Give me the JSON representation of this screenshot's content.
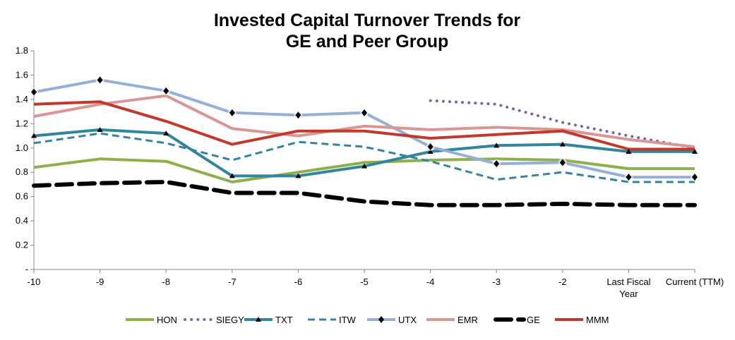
{
  "chart_data": {
    "type": "line",
    "title_line1": "Invested Capital Turnover Trends for",
    "title_line2": "GE and Peer Group",
    "xlabel": "",
    "ylabel": "",
    "ylim": [
      0,
      1.8
    ],
    "yticks": [
      "-",
      "0.2",
      "0.4",
      "0.6",
      "0.8",
      "1.0",
      "1.2",
      "1.4",
      "1.6",
      "1.8"
    ],
    "categories": [
      "-10",
      "-9",
      "-8",
      "-7",
      "-6",
      "-5",
      "-4",
      "-3",
      "-2",
      "Last Fiscal Year",
      "Current (TTM)"
    ],
    "category_lines": [
      [
        "-10"
      ],
      [
        "-9"
      ],
      [
        "-8"
      ],
      [
        "-7"
      ],
      [
        "-6"
      ],
      [
        "-5"
      ],
      [
        "-4"
      ],
      [
        "-3"
      ],
      [
        "-2"
      ],
      [
        "Last Fiscal",
        "Year"
      ],
      [
        "Current (TTM)"
      ]
    ],
    "grid": false,
    "legend_position": "bottom",
    "series": [
      {
        "name": "HON",
        "color": "#8db04a",
        "style": "solid",
        "marker": "none",
        "values": [
          0.84,
          0.91,
          0.89,
          0.72,
          0.8,
          0.88,
          0.9,
          0.91,
          0.9,
          0.83,
          0.83
        ]
      },
      {
        "name": "SIEGY",
        "color": "#8064a2",
        "style": "dotted",
        "marker": "none",
        "values": [
          null,
          null,
          null,
          null,
          null,
          null,
          1.39,
          1.36,
          1.21,
          1.1,
          1.0
        ]
      },
      {
        "name": "TXT",
        "color": "#31859c",
        "style": "solid",
        "marker": "triangle",
        "values": [
          1.1,
          1.15,
          1.12,
          0.77,
          0.77,
          0.85,
          0.97,
          1.02,
          1.03,
          0.97,
          0.97
        ]
      },
      {
        "name": "ITW",
        "color": "#31859c",
        "style": "dashed",
        "marker": "none",
        "values": [
          1.04,
          1.12,
          1.04,
          0.9,
          1.05,
          1.01,
          0.89,
          0.74,
          0.8,
          0.72,
          0.72
        ]
      },
      {
        "name": "UTX",
        "color": "#95b0d8",
        "style": "solid",
        "marker": "diamond",
        "values": [
          1.46,
          1.56,
          1.47,
          1.29,
          1.27,
          1.29,
          1.01,
          0.87,
          0.88,
          0.76,
          0.76
        ]
      },
      {
        "name": "EMR",
        "color": "#d99694",
        "style": "solid",
        "marker": "none",
        "values": [
          1.26,
          1.36,
          1.43,
          1.16,
          1.1,
          1.18,
          1.15,
          1.17,
          1.15,
          1.07,
          1.01
        ]
      },
      {
        "name": "GE",
        "color": "#000000",
        "style": "bigdash",
        "marker": "none",
        "values": [
          0.69,
          0.71,
          0.72,
          0.63,
          0.63,
          0.56,
          0.53,
          0.53,
          0.54,
          0.53,
          0.53
        ]
      },
      {
        "name": "MMM",
        "color": "#c0392b",
        "style": "solid",
        "marker": "none",
        "values": [
          1.36,
          1.38,
          1.22,
          1.03,
          1.14,
          1.14,
          1.08,
          1.11,
          1.14,
          0.99,
          0.99
        ]
      }
    ]
  }
}
